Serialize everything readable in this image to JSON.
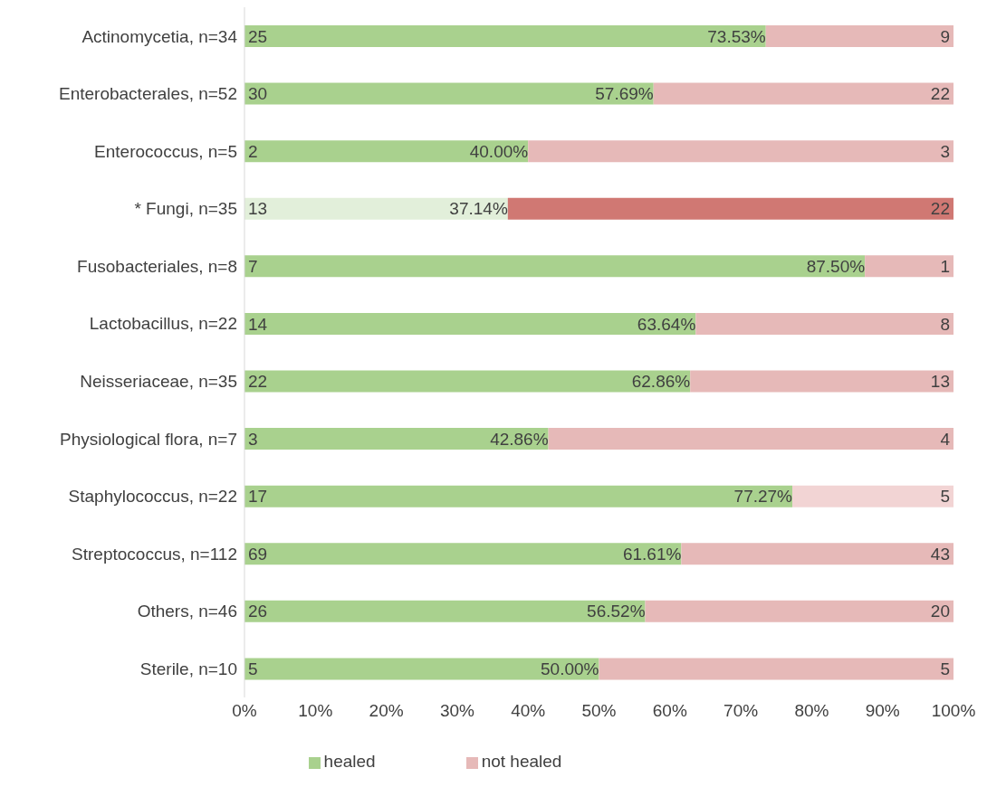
{
  "chart_data": {
    "type": "bar",
    "orientation": "horizontal",
    "stacked": true,
    "categories": [
      "Actinomycetia, n=34",
      "Enterobacterales, n=52",
      "Enterococcus, n=5",
      "* Fungi, n=35",
      "Fusobacteriales, n=8",
      "Lactobacillus, n=22",
      "Neisseriaceae, n=35",
      "Physiological flora, n=7",
      "Staphylococcus, n=22",
      "Streptococcus, n=112",
      "Others, n=46",
      "Sterile, n=10"
    ],
    "series": [
      {
        "name": "healed",
        "color": "#a9d18e",
        "colors": [
          "#a9d18e",
          "#a9d18e",
          "#a9d18e",
          "#e2efda",
          "#a9d18e",
          "#a9d18e",
          "#a9d18e",
          "#a9d18e",
          "#a9d18e",
          "#a9d18e",
          "#a9d18e",
          "#a9d18e"
        ],
        "values": [
          73.53,
          57.69,
          40.0,
          37.14,
          87.5,
          63.64,
          62.86,
          42.86,
          77.27,
          61.61,
          56.52,
          50.0
        ],
        "value_labels": [
          "73.53%",
          "57.69%",
          "40.00%",
          "37.14%",
          "87.50%",
          "63.64%",
          "62.86%",
          "42.86%",
          "77.27%",
          "61.61%",
          "56.52%",
          "50.00%"
        ]
      },
      {
        "name": "not healed",
        "color": "#e6b9b8",
        "colors": [
          "#e6b9b8",
          "#e6b9b8",
          "#e6b9b8",
          "#d07873",
          "#e6b9b8",
          "#e6b9b8",
          "#e6b9b8",
          "#e6b9b8",
          "#f2d4d4",
          "#e6b9b8",
          "#e6b9b8",
          "#e6b9b8"
        ],
        "values": [
          26.47,
          42.31,
          60.0,
          62.86,
          12.5,
          36.36,
          37.14,
          57.14,
          22.73,
          38.39,
          43.48,
          50.0
        ]
      }
    ],
    "annotations": [
      "25",
      "9",
      "30",
      "22",
      "2",
      "3",
      "13",
      "22",
      "7",
      "1",
      "14",
      "8",
      "22",
      "13",
      "3",
      "4",
      "17",
      "5",
      "69",
      "43",
      "26",
      "20",
      "5",
      "5"
    ],
    "xlim": [
      0,
      100
    ],
    "xticks": [
      {
        "value": 0,
        "label": "0%"
      },
      {
        "value": 10,
        "label": "10%"
      },
      {
        "value": 20,
        "label": "20%"
      },
      {
        "value": 30,
        "label": "30%"
      },
      {
        "value": 40,
        "label": "40%"
      },
      {
        "value": 50,
        "label": "50%"
      },
      {
        "value": 60,
        "label": "60%"
      },
      {
        "value": 70,
        "label": "70%"
      },
      {
        "value": 80,
        "label": "80%"
      },
      {
        "value": 90,
        "label": "90%"
      },
      {
        "value": 100,
        "label": "100%"
      }
    ],
    "legend": "bottom"
  }
}
